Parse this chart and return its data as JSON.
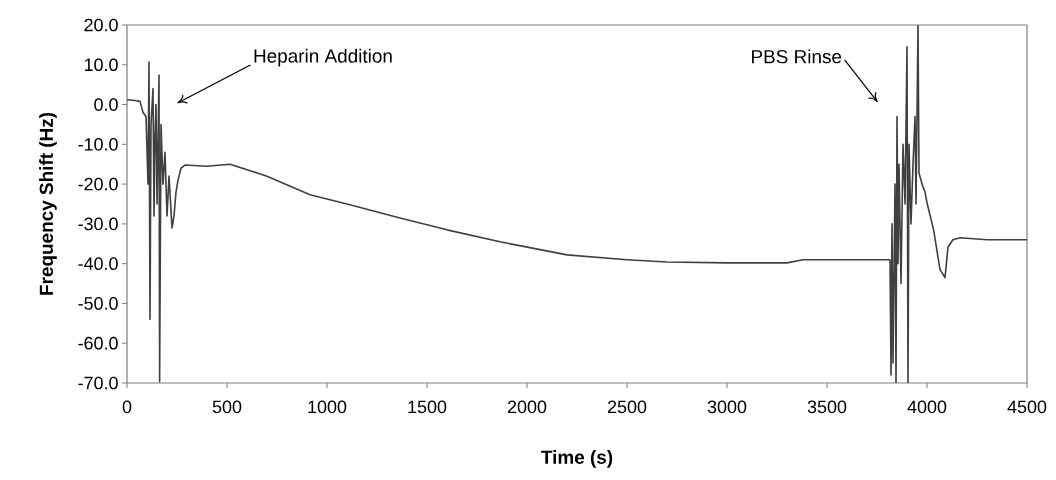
{
  "chart_data": {
    "type": "line",
    "xlabel": "Time (s)",
    "ylabel": "Frequency Shift (Hz)",
    "color": "#404040",
    "grid": false,
    "legend": false,
    "marker": "none",
    "line_style": "solid",
    "xlim": [
      0,
      4500
    ],
    "xticks": [
      0,
      500,
      1000,
      1500,
      2000,
      2500,
      3000,
      3500,
      4000,
      4500
    ],
    "ylim": [
      -70,
      20
    ],
    "yticks": [
      {
        "value": -70,
        "label": "-70.0"
      },
      {
        "value": -60,
        "label": "-60.0"
      },
      {
        "value": -50,
        "label": "-50.0"
      },
      {
        "value": -40,
        "label": "-40.0"
      },
      {
        "value": -30,
        "label": "-30.0"
      },
      {
        "value": -20,
        "label": "-20.0"
      },
      {
        "value": -10,
        "label": "-10.0"
      },
      {
        "value": 0,
        "label": "0.0"
      },
      {
        "value": 10,
        "label": "10.0"
      },
      {
        "value": 20,
        "label": "20.0"
      }
    ],
    "annotations": [
      "Heparin Addition",
      "PBS Rinse"
    ],
    "x": [
      0,
      40,
      65,
      80,
      95,
      105,
      110,
      115,
      120,
      130,
      135,
      140,
      145,
      150,
      155,
      160,
      163,
      170,
      180,
      190,
      200,
      210,
      225,
      235,
      245,
      255,
      270,
      290,
      400,
      515,
      700,
      915,
      1100,
      1365,
      1600,
      1865,
      2200,
      2500,
      2700,
      3000,
      3300,
      3380,
      3600,
      3815,
      3820,
      3825,
      3830,
      3840,
      3845,
      3850,
      3855,
      3860,
      3870,
      3880,
      3890,
      3900,
      3905,
      3910,
      3920,
      3930,
      3940,
      3945,
      3955,
      3960,
      3975,
      3990,
      4000,
      4033,
      4065,
      4090,
      4105,
      4130,
      4165,
      4300,
      4400,
      4500
    ],
    "values": [
      1.2,
      1.0,
      0.8,
      -2,
      -3,
      -20,
      10.7,
      -54,
      -5,
      4,
      -28,
      -8,
      0,
      -25,
      -10,
      7.4,
      -69.7,
      -5,
      -20,
      -12,
      -28,
      -18,
      -31,
      -28,
      -22,
      -19,
      -16,
      -15.2,
      -15.5,
      -15,
      -18,
      -22.7,
      -25,
      -28.5,
      -31.5,
      -34.5,
      -37.8,
      -39,
      -39.6,
      -39.8,
      -39.8,
      -39,
      -39,
      -39,
      -68,
      -30,
      -65,
      -20,
      -70,
      -3,
      -40,
      -15,
      -45,
      -10,
      -25,
      14.5,
      -70,
      -10,
      -30,
      -15,
      -3,
      -25,
      20,
      -17.2,
      -20,
      -22,
      -24.7,
      -31.5,
      -41.5,
      -43.5,
      -35.8,
      -34,
      -33.5,
      -34,
      -34,
      -34
    ]
  }
}
